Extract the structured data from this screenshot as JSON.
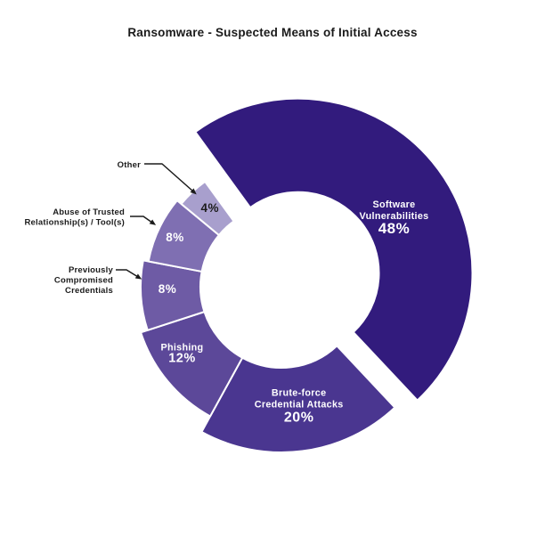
{
  "chart_data": {
    "type": "pie",
    "subtype": "donut-exploded",
    "title": "Ransomware - Suspected Means of Initial Access",
    "unit": "%",
    "legend": "none",
    "start_angle_deg": -36,
    "direction": "clockwise",
    "exploded_slice": "Software Vulnerabilities",
    "slices": [
      {
        "name": "Software Vulnerabilities",
        "value": 48,
        "pct": "48%",
        "color": "#321B7D",
        "label_lines": [
          "Software",
          "Vulnerabilities"
        ],
        "label_style": "inside"
      },
      {
        "name": "Brute-force Credential Attacks",
        "value": 20,
        "pct": "20%",
        "color": "#4A3690",
        "label_lines": [
          "Brute-force",
          "Credential Attacks"
        ],
        "label_style": "inside"
      },
      {
        "name": "Phishing",
        "value": 12,
        "pct": "12%",
        "color": "#5C4899",
        "label_lines": [
          "Phishing"
        ],
        "label_style": "inside"
      },
      {
        "name": "Previously Compromised Credentials",
        "value": 8,
        "pct": "8%",
        "color": "#6E5BA5",
        "label_lines": [
          "Previously",
          "Compromised",
          "Credentials"
        ],
        "label_style": "callout"
      },
      {
        "name": "Abuse of Trusted Relationship(s) / Tool(s)",
        "value": 8,
        "pct": "8%",
        "color": "#7F6FB2",
        "label_lines": [
          "Abuse of Trusted",
          "Relationship(s) / Tool(s)"
        ],
        "label_style": "callout"
      },
      {
        "name": "Other",
        "value": 4,
        "pct": "4%",
        "color": "#A89FCD",
        "label_lines": [
          "Other"
        ],
        "label_style": "callout"
      }
    ],
    "text_colors": {
      "inside_label": "#FFFFFF",
      "other_pct": "#1D1D1D",
      "callout_label": "#1B1B1B",
      "title": "#1A1A1A"
    }
  }
}
